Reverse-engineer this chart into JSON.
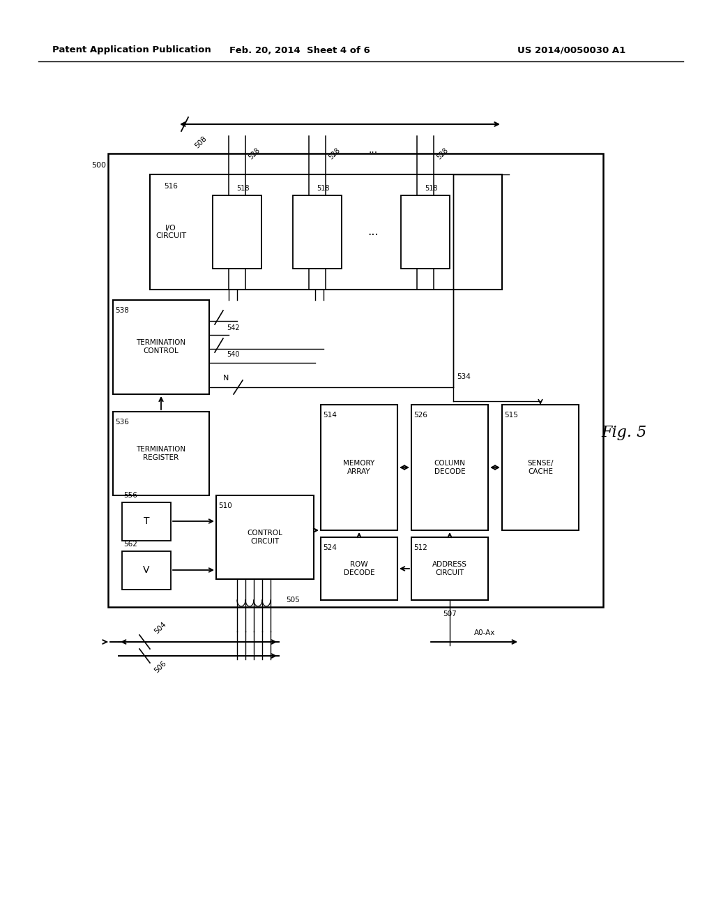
{
  "bg_color": "#ffffff",
  "header_left": "Patent Application Publication",
  "header_mid": "Feb. 20, 2014  Sheet 4 of 6",
  "header_right": "US 2014/0050030 A1",
  "fig_label": "Fig. 5"
}
